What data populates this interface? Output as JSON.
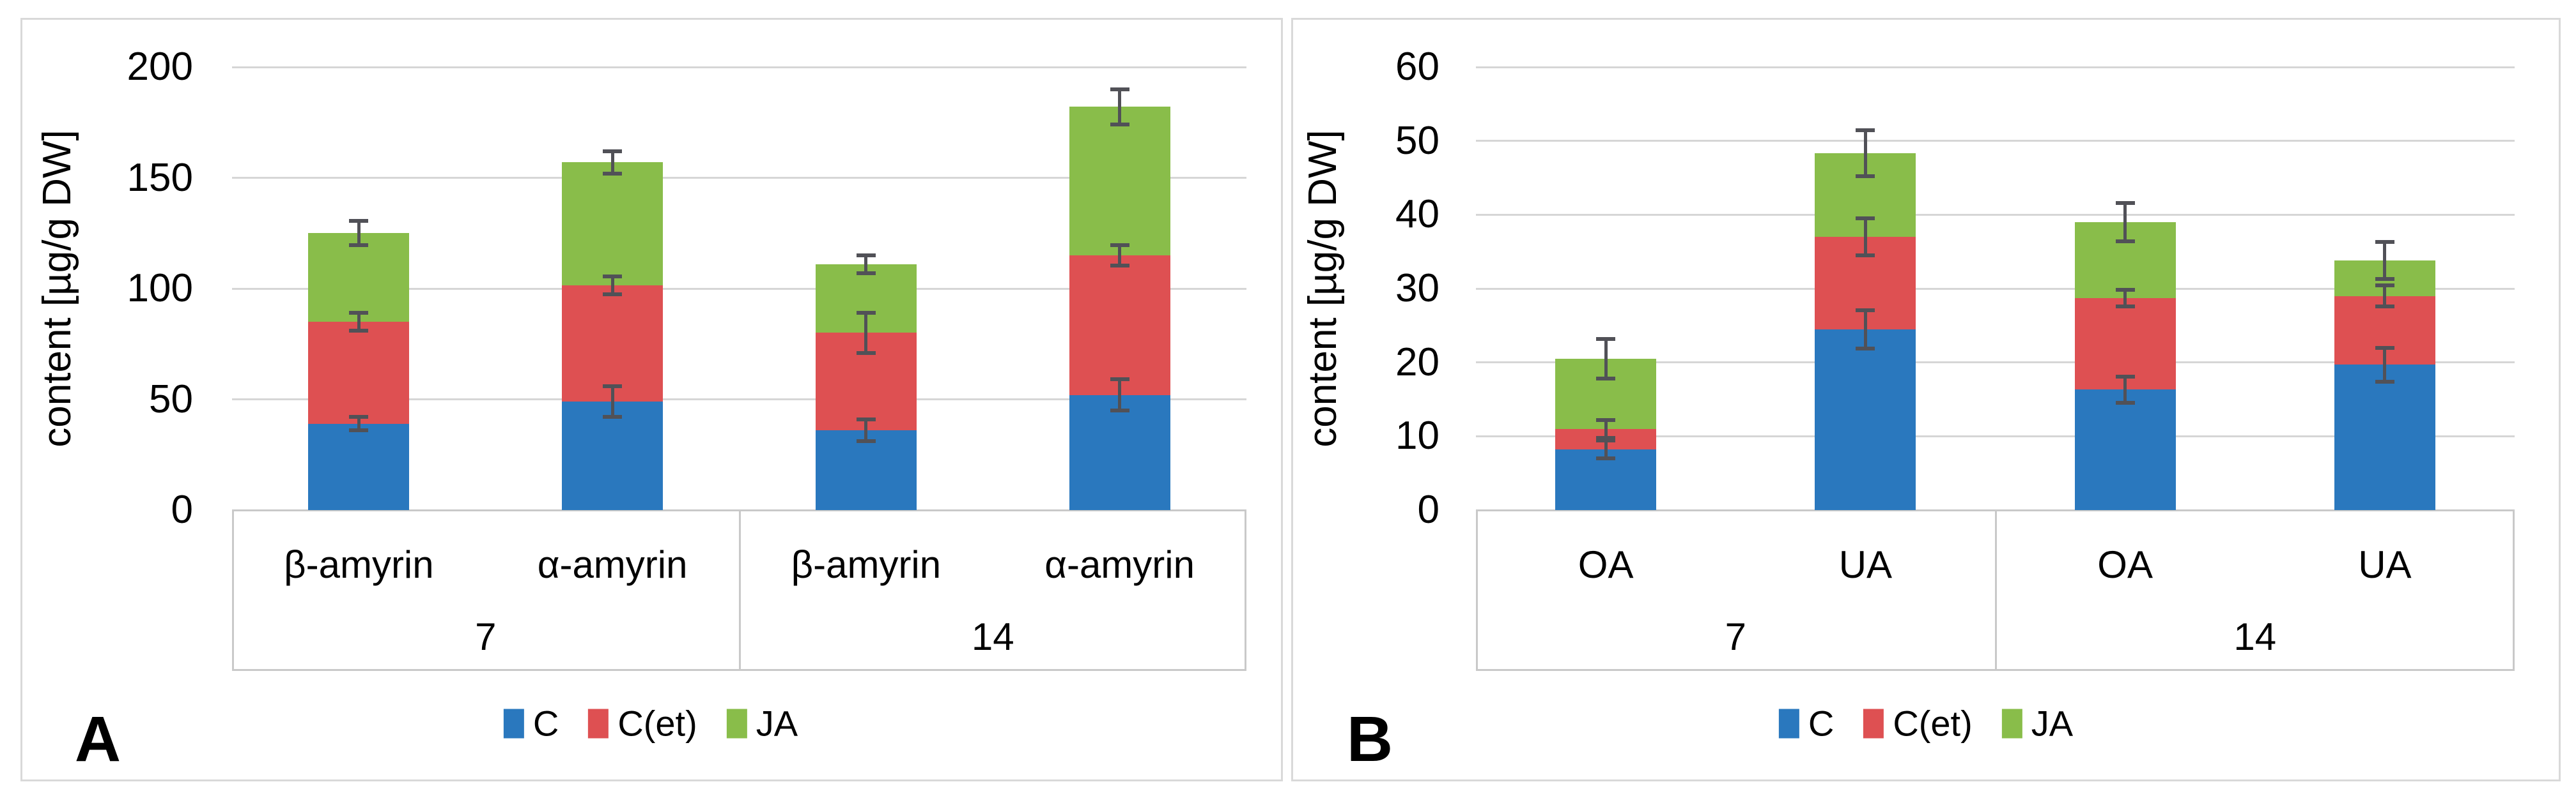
{
  "figure": {
    "background": "#FFFFFF",
    "panels": [
      {
        "letter": "A",
        "y_axis_title": "content [µg/g DW]"
      },
      {
        "letter": "B",
        "y_axis_title": "content [µg/g DW]"
      }
    ],
    "legend": {
      "items": [
        {
          "label": "C",
          "color": "#2A78BE"
        },
        {
          "label": "C(et)",
          "color": "#DE5052"
        },
        {
          "label": "JA",
          "color": "#89BD4A"
        }
      ]
    },
    "colors": {
      "series_C": "#2A78BE",
      "series_Cet": "#DE5052",
      "series_JA": "#89BD4A",
      "error_bar": "#515157",
      "gridline": "#D6D6D6",
      "axis_box_border": "#C9C9C9",
      "panel_border": "#D9D9D9",
      "text": "#000000"
    }
  },
  "chart_data": [
    {
      "id": "A",
      "type": "bar",
      "stacked": true,
      "title": "",
      "xlabel": "",
      "ylabel": "content [µg/g DW]",
      "ylim": [
        0,
        200
      ],
      "ytick_step": 50,
      "yticks": [
        0,
        50,
        100,
        150,
        200
      ],
      "grid": true,
      "legend_position": "bottom",
      "groups": [
        {
          "label": "7",
          "categories": [
            "β-amyrin",
            "α-amyrin"
          ]
        },
        {
          "label": "14",
          "categories": [
            "β-amyrin",
            "α-amyrin"
          ]
        }
      ],
      "categories": [
        "β-amyrin",
        "α-amyrin",
        "β-amyrin",
        "α-amyrin"
      ],
      "series": [
        {
          "name": "C",
          "color": "#2A78BE",
          "values": [
            39,
            49,
            36,
            52
          ],
          "stack_top_errors": [
            3,
            7,
            5,
            7
          ]
        },
        {
          "name": "C(et)",
          "color": "#DE5052",
          "values": [
            46,
            52.5,
            44,
            63
          ],
          "stack_top_errors": [
            4,
            4,
            9,
            4.5
          ]
        },
        {
          "name": "JA",
          "color": "#89BD4A",
          "values": [
            40,
            55.5,
            31,
            67
          ],
          "stack_top_errors": [
            5.5,
            5,
            4,
            8
          ]
        }
      ],
      "stacked_totals": [
        125,
        157,
        111,
        182
      ],
      "error_note": "error bars drawn at the cumulative top of each stacked segment"
    },
    {
      "id": "B",
      "type": "bar",
      "stacked": true,
      "title": "",
      "xlabel": "",
      "ylabel": "content [µg/g DW]",
      "ylim": [
        0,
        60
      ],
      "ytick_step": 10,
      "yticks": [
        0,
        10,
        20,
        30,
        40,
        50,
        60
      ],
      "grid": true,
      "legend_position": "bottom",
      "groups": [
        {
          "label": "7",
          "categories": [
            "OA",
            "UA"
          ]
        },
        {
          "label": "14",
          "categories": [
            "OA",
            "UA"
          ]
        }
      ],
      "categories": [
        "OA",
        "UA",
        "OA",
        "UA"
      ],
      "series": [
        {
          "name": "C",
          "color": "#2A78BE",
          "values": [
            8.2,
            24.5,
            16.3,
            19.7
          ],
          "stack_top_errors": [
            1.2,
            2.6,
            1.8,
            2.3
          ]
        },
        {
          "name": "C(et)",
          "color": "#DE5052",
          "values": [
            2.8,
            12.5,
            12.4,
            9.3
          ],
          "stack_top_errors": [
            1.2,
            2.5,
            1.1,
            1.4
          ]
        },
        {
          "name": "JA",
          "color": "#89BD4A",
          "values": [
            9.5,
            11.3,
            10.3,
            4.8
          ],
          "stack_top_errors": [
            2.7,
            3.1,
            2.6,
            2.5
          ]
        }
      ],
      "stacked_totals": [
        20.5,
        48.3,
        39,
        33.8
      ],
      "error_note": "error bars drawn at the cumulative top of each stacked segment"
    }
  ]
}
